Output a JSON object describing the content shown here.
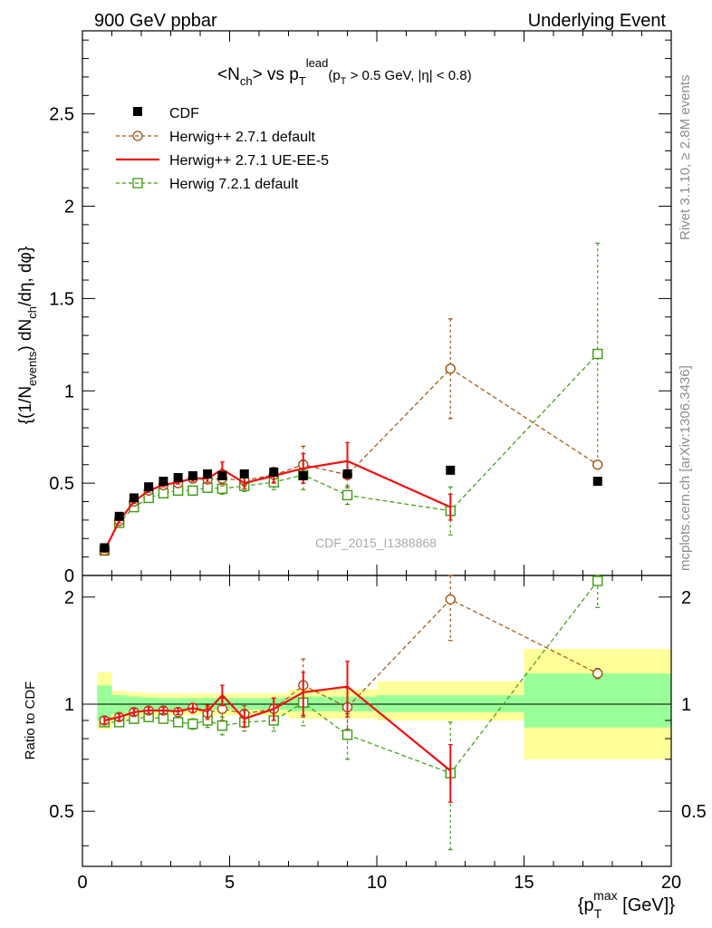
{
  "header": {
    "left": "900 GeV ppbar",
    "right": "Underlying Event"
  },
  "side_labels": {
    "rivet": "Rivet 3.1.10, ≥ 2.8M events",
    "mcplots": "mcplots.cern.ch [arXiv:1306.3436]"
  },
  "analysis_id": "CDF_2015_I1388868",
  "colors": {
    "cdf": "#000000",
    "h271": "#a0520f",
    "ueee5": "#ee1111",
    "h721": "#3d9a0f",
    "band_inner": "#99ff99",
    "band_outer": "#ffff99"
  },
  "chart_data": [
    {
      "type": "scatter",
      "title": "<Nch> vs pT lead (pT > 0.5 GeV, |η| < 0.8)",
      "title_parts": {
        "a": "<N",
        "a_sub": "ch",
        "b": "> vs p",
        "b_sub": "T",
        "b_sup": "lead",
        "c": "(p",
        "c_sub": "T",
        "d": " > 0.5 GeV, |η| < 0.8)"
      },
      "ylabel": "{(1/Nevents) dNch/dη, dφ}",
      "ylabel_parts": {
        "a": "{(1/N",
        "a_sub": "events",
        "b": ") dN",
        "b_sub": "ch",
        "c": "/dη, dφ}"
      },
      "xlim": [
        0,
        20
      ],
      "ylim": [
        0,
        2.95
      ],
      "yticks": [
        0,
        0.5,
        1,
        1.5,
        2,
        2.5
      ],
      "ytick_labels": [
        "0",
        "0.5",
        "1",
        "1.5",
        "2",
        "2.5"
      ],
      "legend_position": "top-left",
      "series": [
        {
          "name": "CDF",
          "style": "square-marker",
          "color": "#000000",
          "x": [
            0.75,
            1.25,
            1.75,
            2.25,
            2.75,
            3.25,
            3.75,
            4.25,
            4.75,
            5.5,
            6.5,
            7.5,
            9.0,
            12.5,
            17.5
          ],
          "y": [
            0.15,
            0.32,
            0.42,
            0.48,
            0.51,
            0.53,
            0.54,
            0.55,
            0.54,
            0.55,
            0.56,
            0.54,
            0.55,
            0.57,
            0.51
          ]
        },
        {
          "name": "Herwig++ 2.7.1 default",
          "style": "open-circle-dashed",
          "color": "#a0520f",
          "x": [
            0.75,
            1.25,
            1.75,
            2.25,
            2.75,
            3.25,
            3.75,
            4.25,
            4.75,
            5.5,
            6.5,
            7.5,
            9.0,
            12.5,
            17.5
          ],
          "y": [
            0.135,
            0.295,
            0.4,
            0.46,
            0.49,
            0.5,
            0.525,
            0.52,
            0.525,
            0.515,
            0.545,
            0.6,
            0.545,
            1.12,
            0.6
          ],
          "err": [
            0.01,
            0.01,
            0.01,
            0.01,
            0.01,
            0.01,
            0.015,
            0.02,
            0.04,
            0.03,
            0.04,
            0.1,
            0.07,
            0.27,
            0.02
          ]
        },
        {
          "name": "Herwig++ 2.7.1 UE-EE-5",
          "style": "solid-line",
          "color": "#ee1111",
          "x": [
            0.75,
            1.25,
            1.75,
            2.25,
            2.75,
            3.25,
            3.75,
            4.25,
            4.75,
            5.5,
            6.5,
            7.5,
            9.0,
            12.5
          ],
          "y": [
            0.135,
            0.295,
            0.4,
            0.46,
            0.49,
            0.505,
            0.525,
            0.525,
            0.575,
            0.5,
            0.54,
            0.58,
            0.62,
            0.37
          ],
          "err": [
            0.01,
            0.01,
            0.01,
            0.01,
            0.01,
            0.01,
            0.015,
            0.02,
            0.04,
            0.03,
            0.04,
            0.08,
            0.1,
            0.07
          ]
        },
        {
          "name": "Herwig 7.2.1 default",
          "style": "open-square-dashed",
          "color": "#3d9a0f",
          "x": [
            0.75,
            1.25,
            1.75,
            2.25,
            2.75,
            3.25,
            3.75,
            4.25,
            4.75,
            5.5,
            6.5,
            7.5,
            9.0,
            12.5,
            17.5
          ],
          "y": [
            0.135,
            0.285,
            0.37,
            0.42,
            0.445,
            0.46,
            0.46,
            0.475,
            0.47,
            0.485,
            0.505,
            0.545,
            0.435,
            0.35,
            1.2
          ],
          "err": [
            0.01,
            0.01,
            0.01,
            0.01,
            0.01,
            0.01,
            0.015,
            0.02,
            0.03,
            0.03,
            0.04,
            0.08,
            0.05,
            0.13,
            0.6
          ]
        }
      ]
    },
    {
      "type": "scatter",
      "title": "Ratio to CDF",
      "ylabel": "Ratio to CDF",
      "xlabel": "{pTmax [GeV]}",
      "xlabel_parts": {
        "a": "{p",
        "a_sub": "T",
        "a_sup": "max",
        "b": " [GeV]}"
      },
      "xlim": [
        0,
        20
      ],
      "ylim": [
        0.35,
        2.3
      ],
      "yticks": [
        0.5,
        1,
        2
      ],
      "ytick_labels": [
        "0.5",
        "1",
        "2"
      ],
      "xticks": [
        0,
        5,
        10,
        15,
        20
      ],
      "xtick_labels": [
        "0",
        "5",
        "10",
        "15",
        "20"
      ],
      "reference_line": 1,
      "bands": {
        "edges": [
          0.5,
          1.0,
          1.5,
          2.0,
          2.5,
          3.0,
          3.5,
          4.0,
          4.5,
          5.0,
          6.0,
          7.0,
          8.0,
          10.0,
          15.0,
          20.0
        ],
        "inner": [
          [
            0.9,
            1.13
          ],
          [
            0.94,
            1.06
          ],
          [
            0.955,
            1.05
          ],
          [
            0.96,
            1.045
          ],
          [
            0.965,
            1.04
          ],
          [
            0.965,
            1.04
          ],
          [
            0.965,
            1.04
          ],
          [
            0.965,
            1.04
          ],
          [
            0.965,
            1.04
          ],
          [
            0.965,
            1.04
          ],
          [
            0.965,
            1.04
          ],
          [
            0.955,
            1.05
          ],
          [
            0.955,
            1.05
          ],
          [
            0.95,
            1.06
          ],
          [
            0.86,
            1.22
          ]
        ],
        "outer": [
          [
            0.85,
            1.23
          ],
          [
            0.9,
            1.09
          ],
          [
            0.92,
            1.08
          ],
          [
            0.925,
            1.075
          ],
          [
            0.93,
            1.07
          ],
          [
            0.93,
            1.07
          ],
          [
            0.93,
            1.07
          ],
          [
            0.93,
            1.07
          ],
          [
            0.93,
            1.07
          ],
          [
            0.93,
            1.07
          ],
          [
            0.93,
            1.07
          ],
          [
            0.91,
            1.1
          ],
          [
            0.91,
            1.1
          ],
          [
            0.9,
            1.16
          ],
          [
            0.7,
            1.43
          ]
        ]
      },
      "series": [
        {
          "name": "Herwig++ 2.7.1 default",
          "color": "#a0520f",
          "x": [
            0.75,
            1.25,
            1.75,
            2.25,
            2.75,
            3.25,
            3.75,
            4.25,
            4.75,
            5.5,
            6.5,
            7.5,
            9.0,
            12.5,
            17.5
          ],
          "y": [
            0.9,
            0.92,
            0.95,
            0.96,
            0.96,
            0.95,
            0.975,
            0.945,
            0.97,
            0.94,
            0.97,
            1.13,
            0.98,
            1.97,
            1.22
          ],
          "err": [
            0.02,
            0.02,
            0.02,
            0.02,
            0.02,
            0.02,
            0.03,
            0.04,
            0.07,
            0.05,
            0.07,
            0.21,
            0.13,
            0.46,
            0.04
          ]
        },
        {
          "name": "Herwig++ 2.7.1 UE-EE-5",
          "color": "#ee1111",
          "x": [
            0.75,
            1.25,
            1.75,
            2.25,
            2.75,
            3.25,
            3.75,
            4.25,
            4.75,
            5.5,
            6.5,
            7.5,
            9.0,
            12.5
          ],
          "y": [
            0.9,
            0.92,
            0.95,
            0.96,
            0.96,
            0.955,
            0.975,
            0.955,
            1.06,
            0.91,
            0.97,
            1.08,
            1.12,
            0.65
          ],
          "err": [
            0.02,
            0.02,
            0.02,
            0.02,
            0.02,
            0.02,
            0.03,
            0.04,
            0.07,
            0.05,
            0.07,
            0.15,
            0.2,
            0.12
          ]
        },
        {
          "name": "Herwig 7.2.1 default",
          "color": "#3d9a0f",
          "x": [
            0.75,
            1.25,
            1.75,
            2.25,
            2.75,
            3.25,
            3.75,
            4.25,
            4.75,
            5.5,
            6.5,
            7.5,
            9.0,
            12.5,
            17.5
          ],
          "y": [
            0.89,
            0.89,
            0.91,
            0.92,
            0.91,
            0.89,
            0.88,
            0.9,
            0.87,
            0.89,
            0.9,
            1.01,
            0.82,
            0.64,
            2.22
          ],
          "err": [
            0.02,
            0.02,
            0.02,
            0.02,
            0.02,
            0.02,
            0.03,
            0.04,
            0.05,
            0.05,
            0.06,
            0.14,
            0.12,
            0.25,
            0.35
          ]
        }
      ]
    }
  ]
}
